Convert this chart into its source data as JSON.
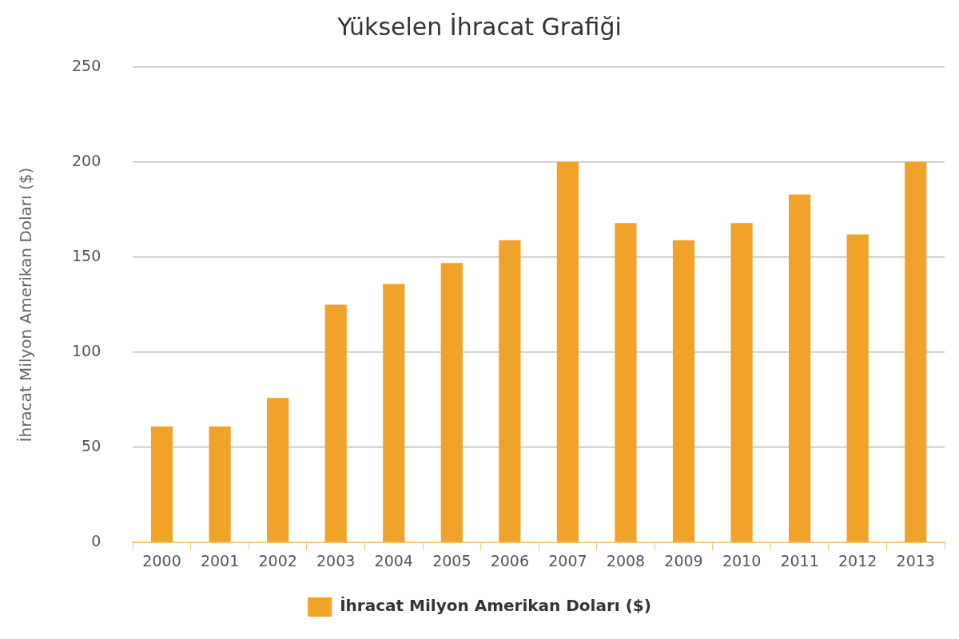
{
  "chart_data": {
    "type": "bar",
    "title": "Yükselen İhracat Grafiği",
    "ylabel": "İhracat Milyon Amerikan Doları ($)",
    "categories": [
      "2000",
      "2001",
      "2002",
      "2003",
      "2004",
      "2005",
      "2006",
      "2007",
      "2008",
      "2009",
      "2010",
      "2011",
      "2012",
      "2013"
    ],
    "series": [
      {
        "name": "İhracat Milyon Amerikan Doları ($)",
        "color": "#f0a229",
        "values": [
          61,
          61,
          76,
          125,
          136,
          147,
          159,
          200,
          168,
          159,
          168,
          183,
          162,
          200
        ]
      }
    ],
    "ylim": [
      0,
      250
    ],
    "yticks": [
      0,
      50,
      100,
      150,
      200,
      250
    ],
    "grid": "y",
    "legend": "bottom"
  }
}
